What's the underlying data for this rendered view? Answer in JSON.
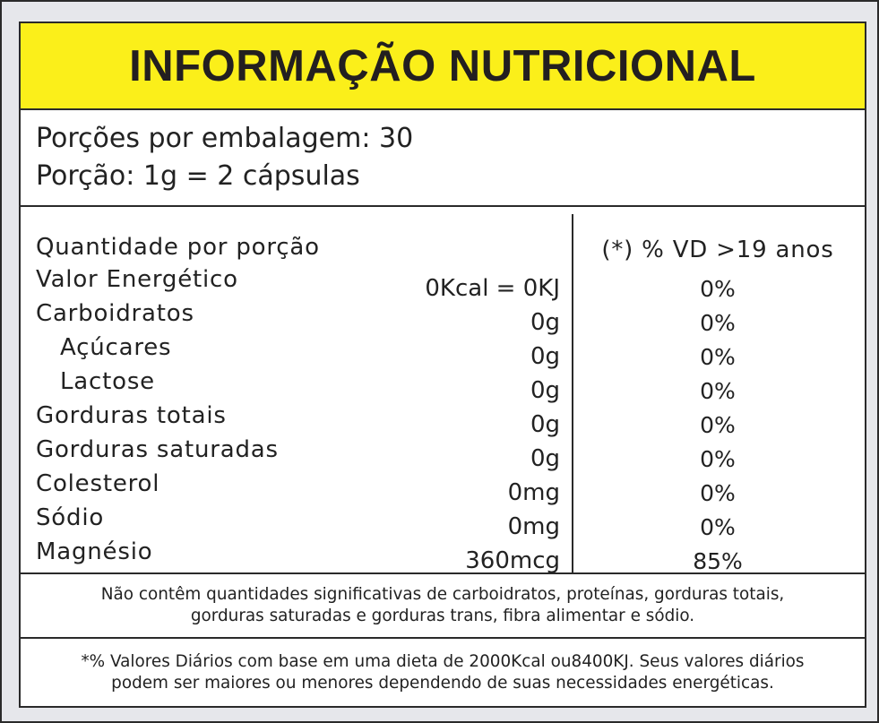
{
  "title": "INFORMAÇÃO NUTRICIONAL",
  "portion": {
    "servings_per_package": "Porções por embalagem: 30",
    "serving_size": "Porção: 1g = 2 cápsulas"
  },
  "table": {
    "header_label": "Quantidade por porção",
    "header_vd": "(*) % VD  >19 anos",
    "rows": [
      {
        "name": "Valor Energético",
        "amount": "0Kcal = 0KJ",
        "vd": "0%"
      },
      {
        "name": "Carboidratos",
        "amount": "0g",
        "vd": "0%"
      },
      {
        "name": "Açúcares",
        "amount": "0g",
        "vd": "0%"
      },
      {
        "name": "Lactose",
        "amount": "0g",
        "vd": "0%"
      },
      {
        "name": "Gorduras totais",
        "amount": "0g",
        "vd": "0%"
      },
      {
        "name": "Gorduras saturadas",
        "amount": "0g",
        "vd": "0%"
      },
      {
        "name": "Colesterol",
        "amount": "0mg",
        "vd": "0%"
      },
      {
        "name": "Sódio",
        "amount": "0mg",
        "vd": "0%"
      },
      {
        "name": "Magnésio",
        "amount": "360mcg",
        "vd": "85%"
      }
    ]
  },
  "notes": {
    "not_significant": [
      "Não contêm quantidades significativas de carboidratos, proteínas, gorduras totais,",
      "gorduras saturadas e gorduras trans, fibra alimentar e sódio."
    ],
    "daily_values": [
      "*% Valores Diários com base em uma dieta de 2000Kcal ou8400KJ. Seus valores diários",
      "podem ser maiores ou menores dependendo de suas necessidades energéticas."
    ]
  }
}
